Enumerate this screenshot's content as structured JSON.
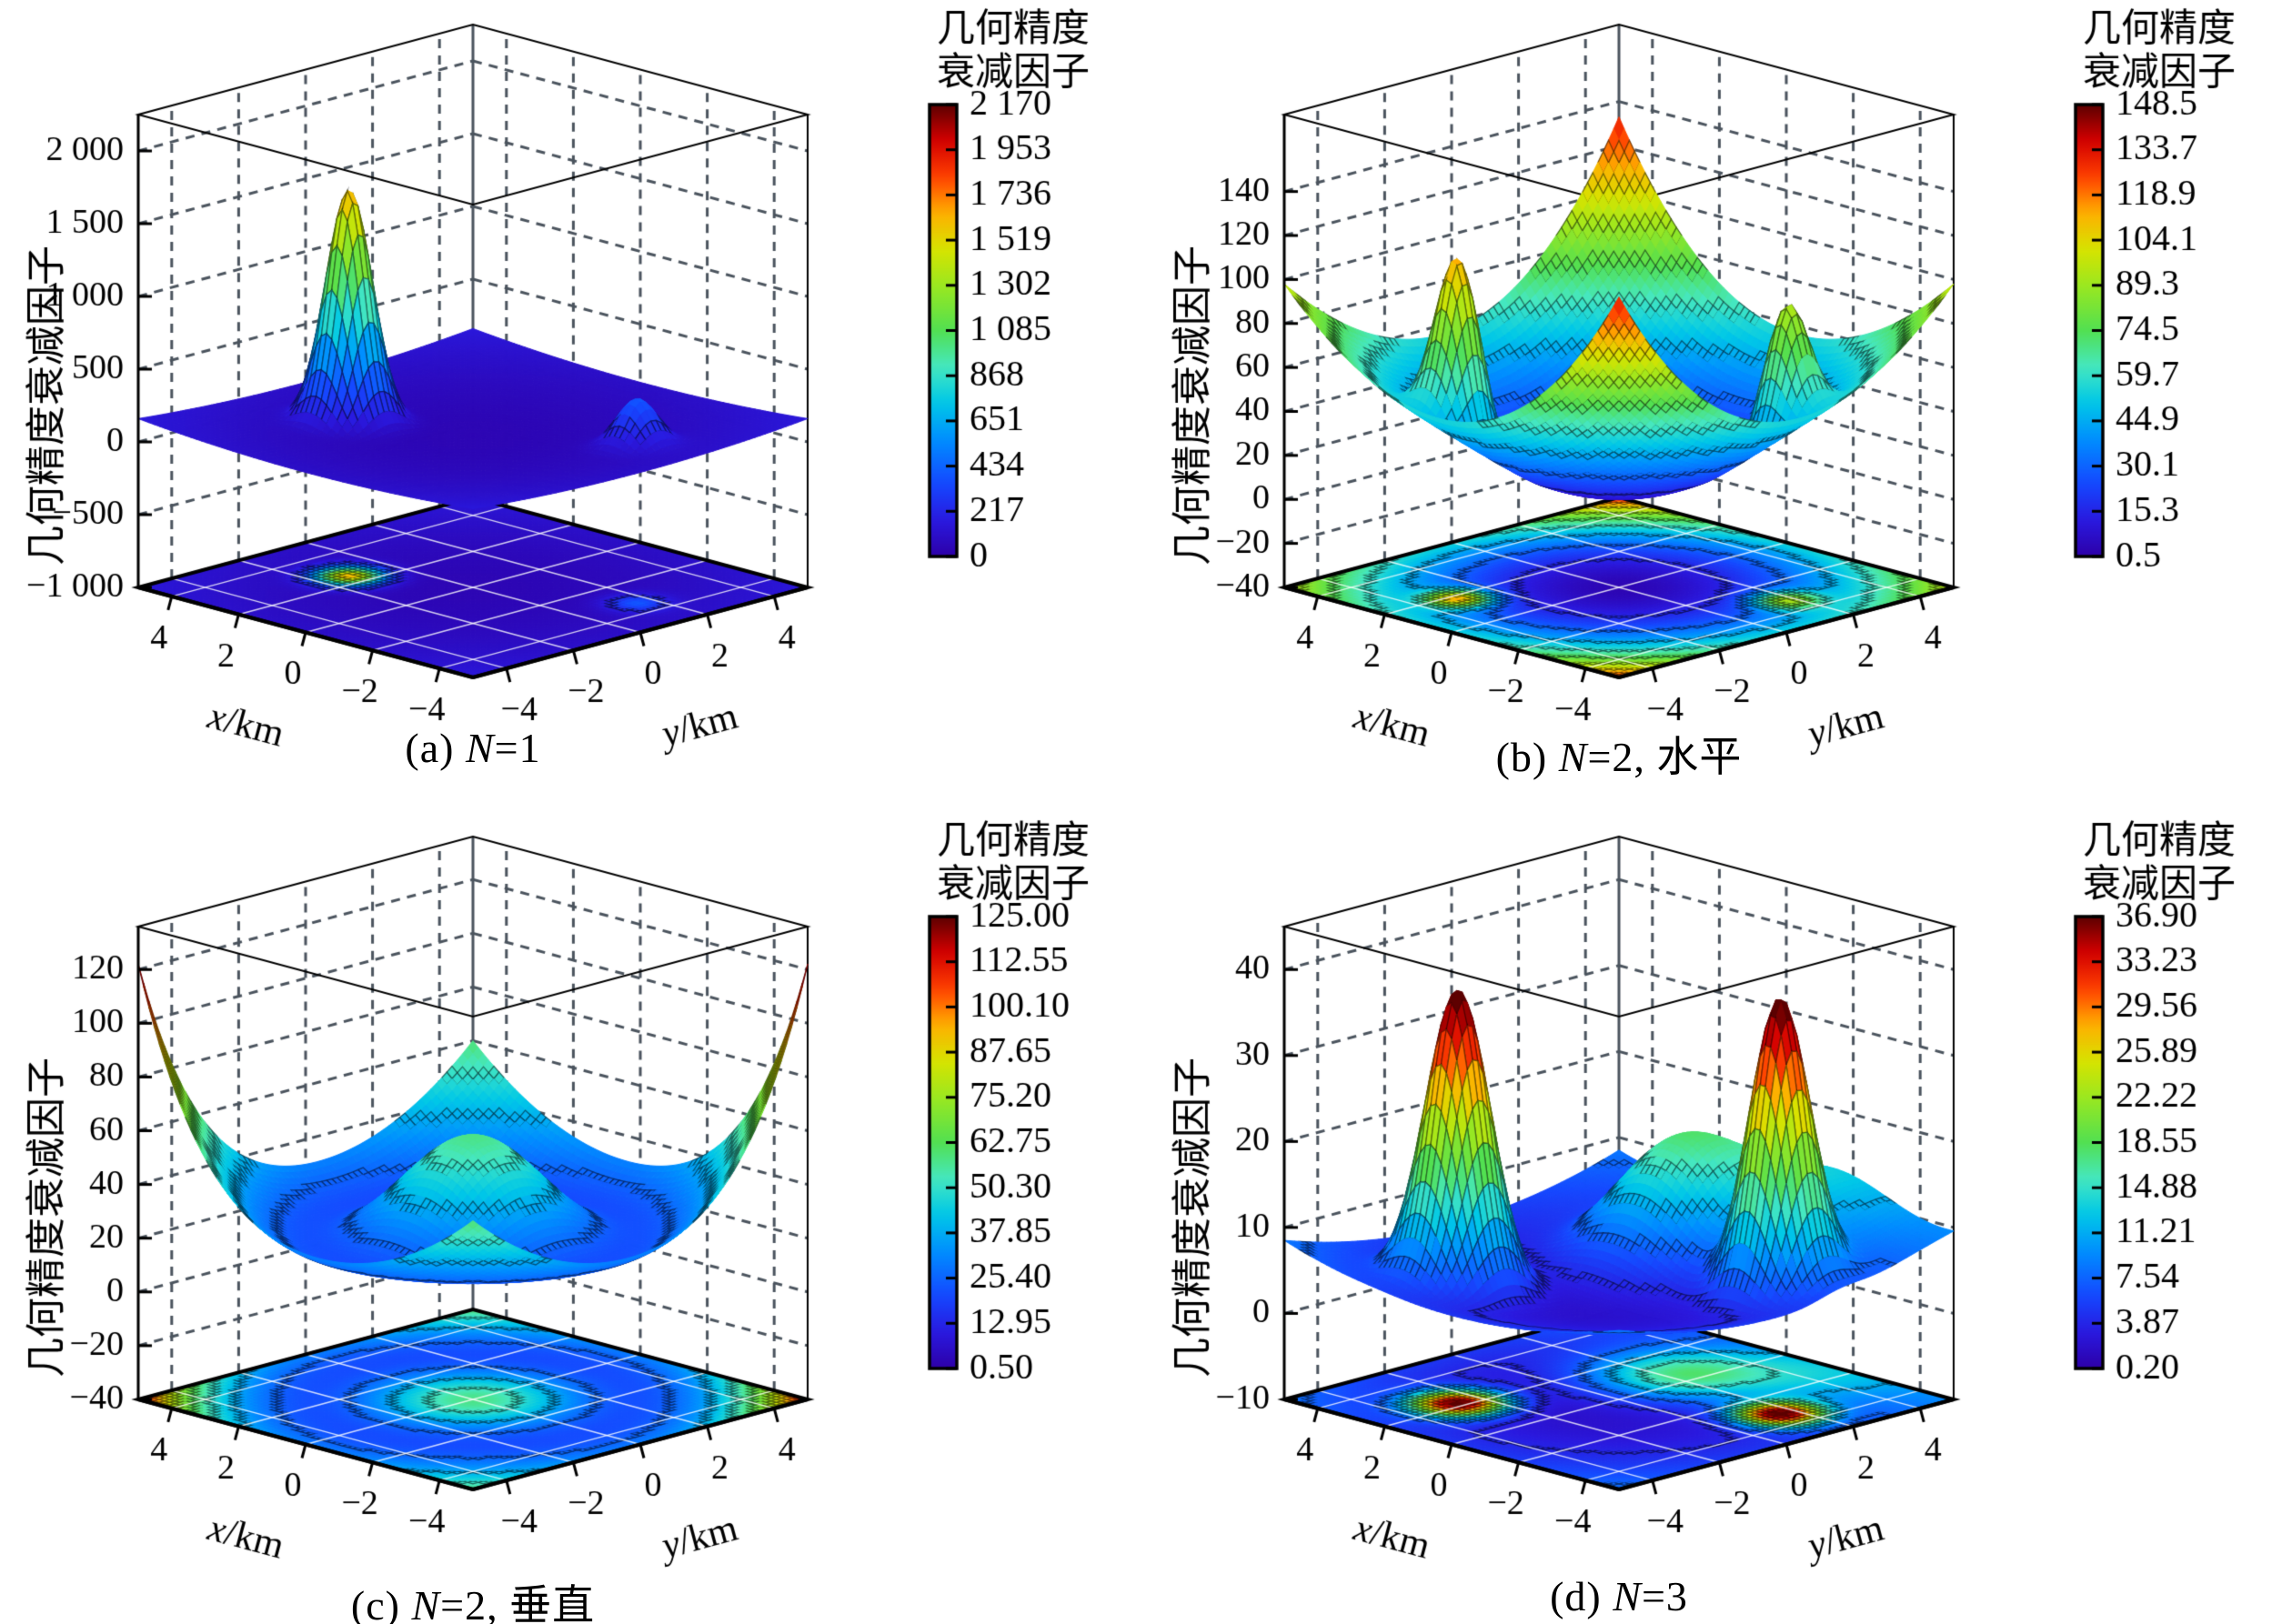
{
  "figure": {
    "background": "#ffffff",
    "unit": "km"
  },
  "colormap": {
    "stops": [
      [
        0.0,
        "#2e00a8"
      ],
      [
        0.08,
        "#2a1ae0"
      ],
      [
        0.16,
        "#1648ff"
      ],
      [
        0.26,
        "#0090ff"
      ],
      [
        0.34,
        "#00c8e8"
      ],
      [
        0.42,
        "#46e8c0"
      ],
      [
        0.5,
        "#52e052"
      ],
      [
        0.6,
        "#9ce820"
      ],
      [
        0.68,
        "#d8e400"
      ],
      [
        0.76,
        "#ffb000"
      ],
      [
        0.84,
        "#ff4000"
      ],
      [
        0.92,
        "#d40000"
      ],
      [
        1.0,
        "#5c0000"
      ]
    ]
  },
  "chart_data": [
    {
      "id": "a",
      "type": "surface3d",
      "caption": {
        "prefix": "(a) ",
        "var": "N",
        "suffix": "=1"
      },
      "xlabel": {
        "var": "x",
        "rest": "/km"
      },
      "ylabel": {
        "var": "y",
        "rest": "/km"
      },
      "zlabel": "几何精度衰减因子",
      "colorbar_title": [
        "几何精度",
        "衰减因子"
      ],
      "xticks": [
        {
          "label": "4",
          "v": 4
        },
        {
          "label": "2",
          "v": 2
        },
        {
          "label": "0",
          "v": 0
        },
        {
          "label": "−2",
          "v": -2
        },
        {
          "label": "−4",
          "v": -4
        }
      ],
      "yticks": [
        {
          "label": "−4",
          "v": -4
        },
        {
          "label": "−2",
          "v": -2
        },
        {
          "label": "0",
          "v": 0
        },
        {
          "label": "2",
          "v": 2
        },
        {
          "label": "4",
          "v": 4
        }
      ],
      "zticks": [
        {
          "label": "2 000",
          "v": 2000
        },
        {
          "label": "1 500",
          "v": 1500
        },
        {
          "label": "1 000",
          "v": 1000
        },
        {
          "label": "500",
          "v": 500
        },
        {
          "label": "0",
          "v": 0
        },
        {
          "label": "−500",
          "v": -500
        },
        {
          "label": "−1 000",
          "v": -1000
        }
      ],
      "zlim": [
        -1000,
        2250
      ],
      "clim": [
        0,
        2170
      ],
      "cticks": [
        "2 170",
        "1 953",
        "1 736",
        "1 519",
        "1 302",
        "1 085",
        "868",
        "651",
        "434",
        "217",
        "0"
      ],
      "xrange": [
        -5,
        5
      ],
      "yrange": [
        -5,
        5
      ],
      "surface": {
        "base": 40,
        "bowl": {
          "amp": 120,
          "pow": 1
        },
        "peaks": [
          {
            "x": 2.5,
            "y": -1.2,
            "amp": 1600,
            "sigma": 0.5
          },
          {
            "x": -3.3,
            "y": 1.6,
            "amp": 330,
            "sigma": 0.45
          }
        ]
      }
    },
    {
      "id": "b",
      "type": "surface3d",
      "caption": {
        "prefix": "(b) ",
        "var": "N",
        "suffix": "=2, 水平"
      },
      "xlabel": {
        "var": "x",
        "rest": "/km"
      },
      "ylabel": {
        "var": "y",
        "rest": "/km"
      },
      "zlabel": "几何精度衰减因子",
      "colorbar_title": [
        "几何精度",
        "衰减因子"
      ],
      "xticks": [
        {
          "label": "4",
          "v": 4
        },
        {
          "label": "2",
          "v": 2
        },
        {
          "label": "0",
          "v": 0
        },
        {
          "label": "−2",
          "v": -2
        },
        {
          "label": "−4",
          "v": -4
        }
      ],
      "yticks": [
        {
          "label": "−4",
          "v": -4
        },
        {
          "label": "−2",
          "v": -2
        },
        {
          "label": "0",
          "v": 0
        },
        {
          "label": "2",
          "v": 2
        },
        {
          "label": "4",
          "v": 4
        }
      ],
      "zticks": [
        {
          "label": "140",
          "v": 140
        },
        {
          "label": "120",
          "v": 120
        },
        {
          "label": "100",
          "v": 100
        },
        {
          "label": "80",
          "v": 80
        },
        {
          "label": "60",
          "v": 60
        },
        {
          "label": "40",
          "v": 40
        },
        {
          "label": "20",
          "v": 20
        },
        {
          "label": "0",
          "v": 0
        },
        {
          "label": "−20",
          "v": -20
        },
        {
          "label": "−40",
          "v": -40
        }
      ],
      "zlim": [
        -40,
        175
      ],
      "clim": [
        0.5,
        148.5
      ],
      "cticks": [
        "148.5",
        "133.7",
        "118.9",
        "104.1",
        "89.3",
        "74.5",
        "59.7",
        "44.9",
        "30.1",
        "15.3",
        "0.5"
      ],
      "xrange": [
        -5,
        5
      ],
      "yrange": [
        -5,
        5
      ],
      "surface": {
        "base": 3,
        "bowl": {
          "amp": 95,
          "pow": 0.9
        },
        "diag_sum": {
          "amp": 35,
          "pow": 2
        },
        "peaks": [
          {
            "x": 1.8,
            "y": -3.0,
            "amp": 85,
            "sigma": 0.5
          },
          {
            "x": -3.2,
            "y": 1.8,
            "amp": 62,
            "sigma": 0.5
          }
        ]
      }
    },
    {
      "id": "c",
      "type": "surface3d",
      "caption": {
        "prefix": "(c) ",
        "var": "N",
        "suffix": "=2, 垂直"
      },
      "xlabel": {
        "var": "x",
        "rest": "/km"
      },
      "ylabel": {
        "var": "y",
        "rest": "/km"
      },
      "zlabel": "几何精度衰减因子",
      "colorbar_title": [
        "几何精度",
        "衰减因子"
      ],
      "xticks": [
        {
          "label": "4",
          "v": 4
        },
        {
          "label": "2",
          "v": 2
        },
        {
          "label": "0",
          "v": 0
        },
        {
          "label": "−2",
          "v": -2
        },
        {
          "label": "−4",
          "v": -4
        }
      ],
      "yticks": [
        {
          "label": "−4",
          "v": -4
        },
        {
          "label": "−2",
          "v": -2
        },
        {
          "label": "0",
          "v": 0
        },
        {
          "label": "2",
          "v": 2
        },
        {
          "label": "4",
          "v": 4
        }
      ],
      "zticks": [
        {
          "label": "120",
          "v": 120
        },
        {
          "label": "100",
          "v": 100
        },
        {
          "label": "80",
          "v": 80
        },
        {
          "label": "60",
          "v": 60
        },
        {
          "label": "40",
          "v": 40
        },
        {
          "label": "20",
          "v": 20
        },
        {
          "label": "0",
          "v": 0
        },
        {
          "label": "−20",
          "v": -20
        },
        {
          "label": "−40",
          "v": -40
        }
      ],
      "zlim": [
        -40,
        136
      ],
      "clim": [
        0.5,
        125
      ],
      "cticks": [
        "125.00",
        "112.55",
        "100.10",
        "87.65",
        "75.20",
        "62.75",
        "50.30",
        "37.85",
        "25.40",
        "12.95",
        "0.50"
      ],
      "xrange": [
        -5,
        5
      ],
      "yrange": [
        -5,
        5
      ],
      "surface": {
        "base": 2,
        "bowl": {
          "amp": 58,
          "pow": 1.1
        },
        "diag_diff": {
          "amp": 62,
          "pow": 3
        },
        "peaks": [
          {
            "x": 0,
            "y": 0,
            "amp": 56,
            "sigma": 1.7
          }
        ]
      }
    },
    {
      "id": "d",
      "type": "surface3d",
      "caption": {
        "prefix": "(d) ",
        "var": "N",
        "suffix": "=3"
      },
      "xlabel": {
        "var": "x",
        "rest": "/km"
      },
      "ylabel": {
        "var": "y",
        "rest": "/km"
      },
      "zlabel": "几何精度衰减因子",
      "colorbar_title": [
        "几何精度",
        "衰减因子"
      ],
      "xticks": [
        {
          "label": "4",
          "v": 4
        },
        {
          "label": "2",
          "v": 2
        },
        {
          "label": "0",
          "v": 0
        },
        {
          "label": "−2",
          "v": -2
        },
        {
          "label": "−4",
          "v": -4
        }
      ],
      "yticks": [
        {
          "label": "−4",
          "v": -4
        },
        {
          "label": "−2",
          "v": -2
        },
        {
          "label": "0",
          "v": 0
        },
        {
          "label": "2",
          "v": 2
        },
        {
          "label": "4",
          "v": 4
        }
      ],
      "zticks": [
        {
          "label": "40",
          "v": 40
        },
        {
          "label": "30",
          "v": 30
        },
        {
          "label": "20",
          "v": 20
        },
        {
          "label": "10",
          "v": 10
        },
        {
          "label": "0",
          "v": 0
        },
        {
          "label": "−10",
          "v": -10
        }
      ],
      "zlim": [
        -10,
        45
      ],
      "clim": [
        0.2,
        36.9
      ],
      "cticks": [
        "36.90",
        "33.23",
        "29.56",
        "25.89",
        "22.22",
        "18.55",
        "14.88",
        "11.21",
        "7.54",
        "3.87",
        "0.20"
      ],
      "xrange": [
        -5,
        5
      ],
      "yrange": [
        -5,
        5
      ],
      "surface": {
        "base": 1.5,
        "bowl": {
          "amp": 7,
          "pow": 1
        },
        "peaks": [
          {
            "x": 2.2,
            "y": -2.6,
            "amp": 35,
            "sigma": 0.7
          },
          {
            "x": -3.2,
            "y": 1.6,
            "amp": 33,
            "sigma": 0.65
          },
          {
            "x": 0.6,
            "y": 2.2,
            "amp": 13,
            "sigma": 1.4
          },
          {
            "x": -1.5,
            "y": 4.2,
            "amp": 8,
            "sigma": 1.8
          }
        ]
      }
    }
  ]
}
